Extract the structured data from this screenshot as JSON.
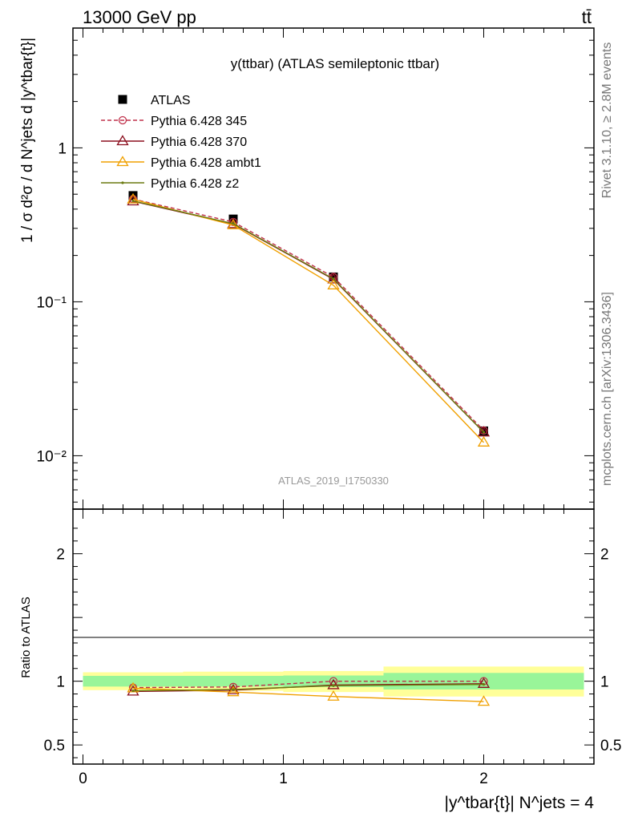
{
  "header": {
    "energy_label": "13000 GeV pp",
    "process_label": "tt̄"
  },
  "side_labels": {
    "rivet": "Rivet 3.1.10, ≥ 2.8M events",
    "mcplots": "mcplots.cern.ch [arXiv:1306.3436]"
  },
  "chart_data": [
    {
      "type": "line",
      "title": "y(ttbar) (ATLAS semileptonic ttbar)",
      "watermark": "ATLAS_2019_I1750330",
      "ylabel": "1 / σ d²σ / d N^jets d |y^tbar{t}|",
      "yscale": "log",
      "ylim": [
        0.0045,
        6.0
      ],
      "xlim": [
        -0.05,
        2.55
      ],
      "y_ticks": [
        {
          "value": 1,
          "label": "1"
        },
        {
          "value": 0.1,
          "label": "10⁻¹"
        },
        {
          "value": 0.01,
          "label": "10⁻²"
        }
      ],
      "x": [
        0.25,
        0.75,
        1.25,
        2.0
      ],
      "series": [
        {
          "name": "ATLAS",
          "color": "#000000",
          "marker": "square",
          "values": [
            0.49,
            0.345,
            0.145,
            0.0145
          ]
        },
        {
          "name": "Pythia 6.428 345",
          "color": "#c0304a",
          "marker": "circle",
          "dashed": true,
          "values": [
            0.465,
            0.33,
            0.145,
            0.0146
          ]
        },
        {
          "name": "Pythia 6.428 370",
          "color": "#8b0f1e",
          "marker": "triangle",
          "values": [
            0.45,
            0.32,
            0.14,
            0.0142
          ]
        },
        {
          "name": "Pythia 6.428 ambt1",
          "color": "#f0a000",
          "marker": "triangle",
          "values": [
            0.463,
            0.315,
            0.128,
            0.0122
          ]
        },
        {
          "name": "Pythia 6.428 z2",
          "color": "#6b7a10",
          "marker": "dot",
          "values": [
            0.452,
            0.322,
            0.141,
            0.0142
          ]
        }
      ]
    },
    {
      "type": "line",
      "ylabel": "Ratio to ATLAS",
      "xlabel": "|y^tbar{t}| N^jets = 4",
      "ylim": [
        0.35,
        2.35
      ],
      "xlim": [
        -0.05,
        2.55
      ],
      "y_ticks": [
        {
          "value": 2,
          "label": "2"
        },
        {
          "value": 1,
          "label": "1"
        },
        {
          "value": 0.5,
          "label": "0.5"
        }
      ],
      "x_ticks": [
        {
          "value": 0,
          "label": "0"
        },
        {
          "value": 1,
          "label": "1"
        },
        {
          "value": 2,
          "label": "2"
        }
      ],
      "bands": [
        {
          "x0": 0.0,
          "x1": 0.5,
          "stat_lo": 0.958,
          "stat_hi": 1.042,
          "tot_lo": 0.93,
          "tot_hi": 1.07
        },
        {
          "x0": 0.5,
          "x1": 1.0,
          "stat_lo": 0.958,
          "stat_hi": 1.042,
          "tot_lo": 0.925,
          "tot_hi": 1.075
        },
        {
          "x0": 1.0,
          "x1": 1.5,
          "stat_lo": 0.955,
          "stat_hi": 1.045,
          "tot_lo": 0.915,
          "tot_hi": 1.08
        },
        {
          "x0": 1.5,
          "x1": 2.5,
          "stat_lo": 0.935,
          "stat_hi": 1.065,
          "tot_lo": 0.88,
          "tot_hi": 1.115
        }
      ],
      "x": [
        0.25,
        0.75,
        1.25,
        2.0
      ],
      "series": [
        {
          "name": "Pythia 6.428 345",
          "color": "#c0304a",
          "marker": "circle",
          "dashed": true,
          "values": [
            0.95,
            0.955,
            1.0,
            1.0
          ]
        },
        {
          "name": "Pythia 6.428 370",
          "color": "#8b0f1e",
          "marker": "triangle",
          "values": [
            0.92,
            0.93,
            0.97,
            0.98
          ]
        },
        {
          "name": "Pythia 6.428 ambt1",
          "color": "#f0a000",
          "marker": "triangle",
          "values": [
            0.945,
            0.915,
            0.88,
            0.84
          ]
        },
        {
          "name": "Pythia 6.428 z2",
          "color": "#6b7a10",
          "marker": "dot",
          "values": [
            0.925,
            0.935,
            0.965,
            0.975
          ]
        }
      ]
    }
  ]
}
